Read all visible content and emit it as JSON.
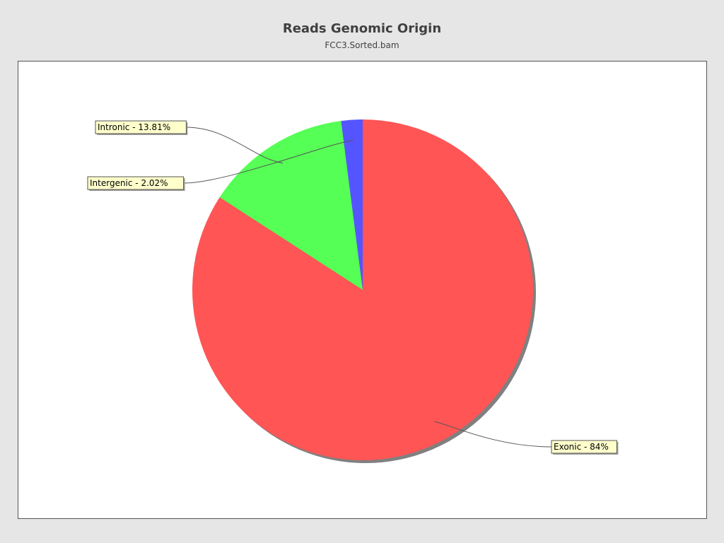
{
  "chart_data": {
    "type": "pie",
    "title": "Reads Genomic Origin",
    "subtitle": "FCC3.Sorted.bam",
    "slices": [
      {
        "name": "Exonic",
        "label": "Exonic - 84%",
        "value": 84.0,
        "color": "#ff5555"
      },
      {
        "name": "Intronic",
        "label": "Intronic - 13.81%",
        "value": 13.81,
        "color": "#55ff55"
      },
      {
        "name": "Intergenic",
        "label": "Intergenic - 2.02%",
        "value": 2.02,
        "color": "#5555ff"
      }
    ],
    "label_style": {
      "background": "#ffffcc",
      "border": "#555555"
    },
    "shadow_color": "#808080",
    "start_angle": "12 o'clock",
    "direction": "clockwise"
  }
}
